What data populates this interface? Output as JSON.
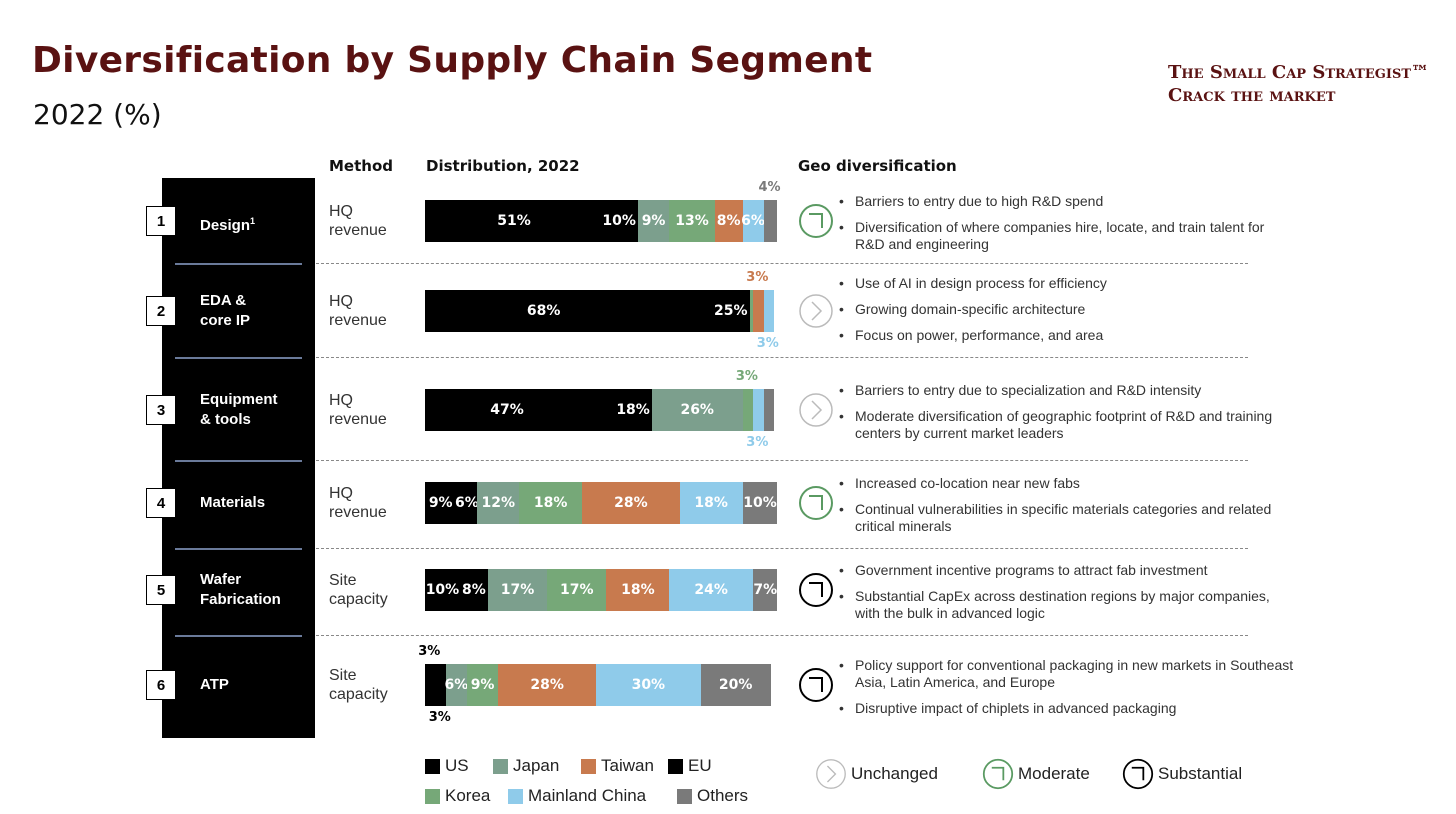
{
  "header": {
    "title": "Diversification by Supply Chain Segment",
    "subtitle": "2022 (%)"
  },
  "brand": {
    "line1": "The Small Cap Strategist™",
    "line2": "Crack the market"
  },
  "columns": {
    "method": "Method",
    "distribution": "Distribution, 2022",
    "geo": "Geo diversification"
  },
  "colors": {
    "US": "#000000",
    "EU": "#000000",
    "Japan": "#7c9f8d",
    "Korea": "#76a878",
    "Taiwan": "#c87a4e",
    "Mainland China": "#8fcbea",
    "Others": "#7a7a7a"
  },
  "chart_data": {
    "type": "bar",
    "stacked": true,
    "orientation": "horizontal",
    "title": "Distribution, 2022",
    "units": "%",
    "series_order": [
      "US",
      "EU",
      "Japan",
      "Korea",
      "Taiwan",
      "Mainland China",
      "Others"
    ],
    "categories": [
      "Design",
      "EDA & core IP",
      "Equipment & tools",
      "Materials",
      "Wafer Fabrication",
      "ATP"
    ],
    "series": [
      {
        "name": "US",
        "values": [
          51,
          68,
          47,
          9,
          10,
          3
        ],
        "labels": [
          "51%",
          "68%",
          "47%",
          "9%",
          "10%",
          "3%"
        ],
        "label_pos": [
          "in",
          "in",
          "in",
          "in",
          "in",
          "above"
        ]
      },
      {
        "name": "EU",
        "values": [
          10,
          25,
          18,
          6,
          8,
          3
        ],
        "labels": [
          "10%",
          "25%",
          "18%",
          "6%",
          "8%",
          "3%"
        ],
        "label_pos": [
          "in",
          "in",
          "in",
          "in",
          "in",
          "below"
        ]
      },
      {
        "name": "Japan",
        "values": [
          9,
          0,
          26,
          12,
          17,
          6
        ],
        "labels": [
          "9%",
          "",
          "26%",
          "12%",
          "17%",
          "6%"
        ],
        "label_pos": [
          "in",
          "none",
          "in",
          "in",
          "in",
          "in"
        ]
      },
      {
        "name": "Korea",
        "values": [
          13,
          1,
          3,
          18,
          17,
          9
        ],
        "labels": [
          "13%",
          "",
          "3%",
          "18%",
          "17%",
          "9%"
        ],
        "label_pos": [
          "in",
          "none",
          "above",
          "in",
          "in",
          "in"
        ]
      },
      {
        "name": "Taiwan",
        "values": [
          8,
          3,
          0,
          28,
          18,
          28
        ],
        "labels": [
          "8%",
          "3%",
          "",
          "28%",
          "18%",
          "28%"
        ],
        "label_pos": [
          "in",
          "above",
          "none",
          "in",
          "in",
          "in"
        ]
      },
      {
        "name": "Mainland China",
        "values": [
          6,
          3,
          3,
          18,
          24,
          30
        ],
        "labels": [
          "6%",
          "3%",
          "3%",
          "18%",
          "24%",
          "30%"
        ],
        "label_pos": [
          "in",
          "below",
          "below",
          "in",
          "in",
          "in"
        ]
      },
      {
        "name": "Others",
        "values": [
          4,
          0,
          3,
          10,
          7,
          20
        ],
        "labels": [
          "4%",
          "",
          "",
          "10%",
          "7%",
          "20%"
        ],
        "label_pos": [
          "above",
          "none",
          "none",
          "in",
          "in",
          "in"
        ]
      }
    ],
    "xlim": [
      0,
      100
    ],
    "legend": [
      "US",
      "Japan",
      "Taiwan",
      "EU",
      "Korea",
      "Mainland China",
      "Others"
    ]
  },
  "rows": [
    {
      "num": "1",
      "name": "Design",
      "sup": "1",
      "method": [
        "HQ",
        "revenue"
      ],
      "geo": "moderate",
      "bullets": [
        "Barriers to entry due to high R&D spend",
        "Diversification of where companies hire, locate, and train talent for R&D and engineering"
      ]
    },
    {
      "num": "2",
      "name": "EDA &\ncore IP",
      "sup": "",
      "method": [
        "HQ",
        "revenue"
      ],
      "geo": "unchanged",
      "bullets": [
        "Use of AI in design process for efficiency",
        "Growing domain-specific architecture",
        "Focus on power, performance, and area"
      ]
    },
    {
      "num": "3",
      "name": "Equipment\n& tools",
      "sup": "",
      "method": [
        "HQ",
        "revenue"
      ],
      "geo": "unchanged",
      "bullets": [
        "Barriers to entry due to specialization and R&D intensity",
        "Moderate diversification of geographic footprint of R&D and training centers by current market leaders"
      ]
    },
    {
      "num": "4",
      "name": "Materials",
      "sup": "",
      "method": [
        "HQ",
        "revenue"
      ],
      "geo": "moderate",
      "bullets": [
        "Increased co-location near new fabs",
        "Continual vulnerabilities in specific materials categories and related critical minerals"
      ]
    },
    {
      "num": "5",
      "name": "Wafer\nFabrication",
      "sup": "",
      "method": [
        "Site",
        "capacity"
      ],
      "geo": "substantial",
      "bullets": [
        "Government incentive programs to attract fab investment",
        "Substantial CapEx across destination regions by major companies, with the bulk in advanced logic"
      ]
    },
    {
      "num": "6",
      "name": "ATP",
      "sup": "",
      "method": [
        "Site",
        "capacity"
      ],
      "geo": "substantial",
      "bullets": [
        "Policy support for conventional packaging in new markets in Southeast Asia, Latin America, and Europe",
        "Disruptive impact of chiplets in advanced packaging"
      ]
    }
  ],
  "geo_legend": [
    {
      "key": "unchanged",
      "label": "Unchanged",
      "color": "#bbbbbb"
    },
    {
      "key": "moderate",
      "label": "Moderate",
      "color": "#5a9a62"
    },
    {
      "key": "substantial",
      "label": "Substantial",
      "color": "#000000"
    }
  ]
}
